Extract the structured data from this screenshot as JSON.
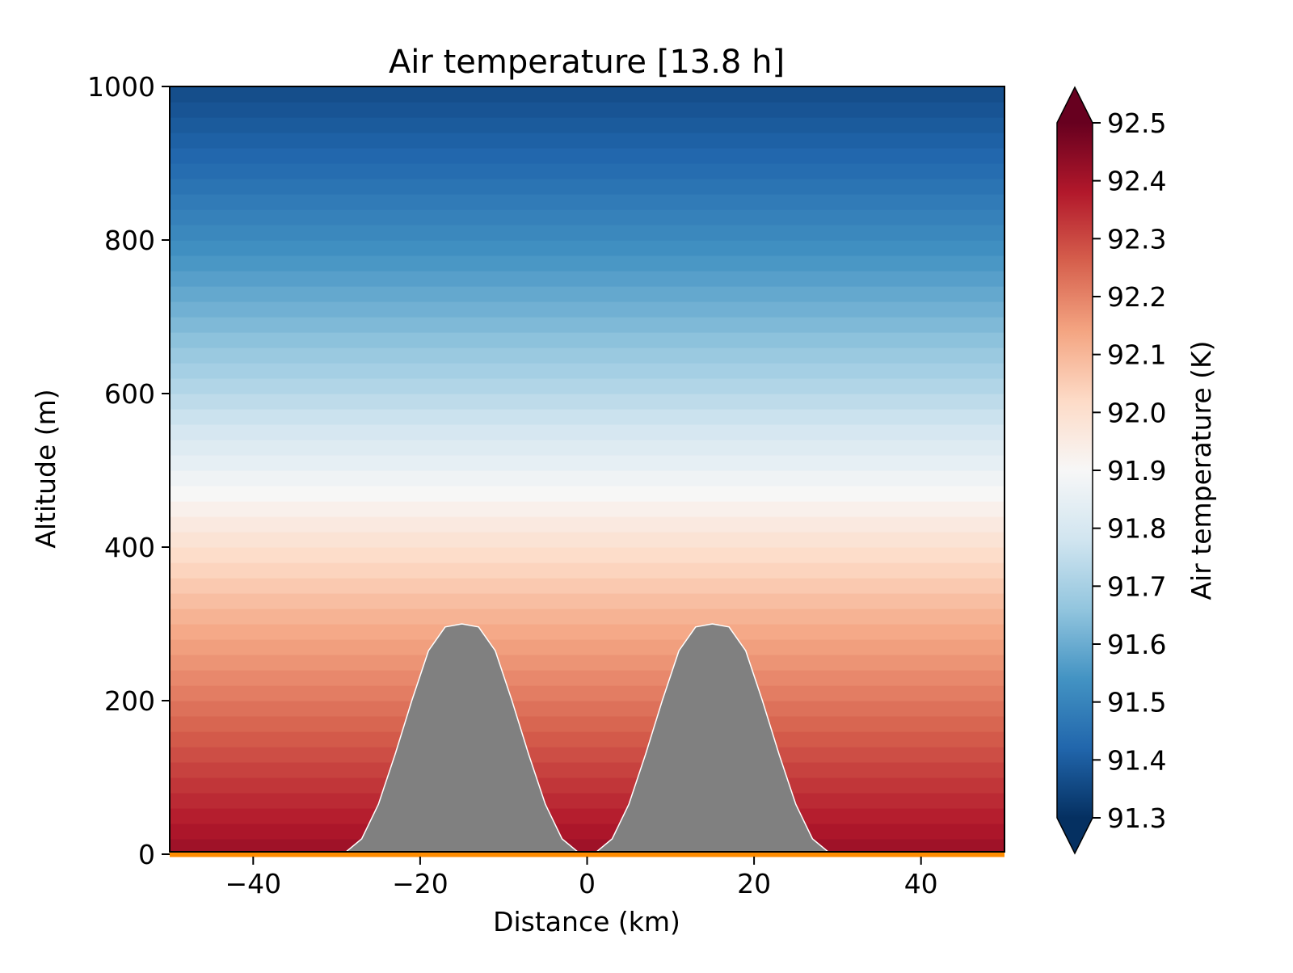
{
  "chart_data": {
    "type": "heatmap",
    "title": "Air temperature [13.8 h]",
    "xlabel": "Distance (km)",
    "ylabel": "Altitude (m)",
    "xlim": [
      -50,
      50
    ],
    "ylim": [
      0,
      1000
    ],
    "xticks": [
      -40,
      -20,
      0,
      20,
      40
    ],
    "xtick_labels": [
      "−40",
      "−20",
      "0",
      "20",
      "40"
    ],
    "yticks": [
      0,
      200,
      400,
      600,
      800,
      1000
    ],
    "ytick_labels": [
      "0",
      "200",
      "400",
      "600",
      "800",
      "1000"
    ],
    "grid": false,
    "colorbar": {
      "label": "Air temperature (K)",
      "range": [
        91.3,
        92.5
      ],
      "colormap": "RdBu_r",
      "extend": "both",
      "ticks": [
        91.3,
        91.4,
        91.5,
        91.6,
        91.7,
        91.8,
        91.9,
        92.0,
        92.1,
        92.2,
        92.3,
        92.4,
        92.5
      ],
      "tick_labels": [
        "91.3",
        "91.4",
        "91.5",
        "91.6",
        "91.7",
        "91.8",
        "91.9",
        "92.0",
        "92.1",
        "92.2",
        "92.3",
        "92.4",
        "92.5"
      ]
    },
    "temperature_profile": {
      "altitude_m": [
        0,
        100,
        200,
        300,
        400,
        450,
        500,
        600,
        700,
        800,
        900,
        1000
      ],
      "temperature_K": [
        92.42,
        92.32,
        92.22,
        92.12,
        92.0,
        91.93,
        91.86,
        91.73,
        91.62,
        91.52,
        91.43,
        91.36
      ]
    },
    "terrain": {
      "distance_km": [
        -50,
        -29,
        -27,
        -25,
        -23,
        -21,
        -19,
        -17,
        -15,
        -13,
        -11,
        -9,
        -7,
        -5,
        -3,
        -1,
        1,
        3,
        5,
        7,
        9,
        11,
        13,
        15,
        17,
        19,
        21,
        23,
        25,
        27,
        29,
        50
      ],
      "altitude_m": [
        0,
        2,
        20,
        65,
        130,
        200,
        265,
        296,
        300,
        296,
        265,
        200,
        130,
        65,
        20,
        2,
        2,
        20,
        65,
        130,
        200,
        265,
        296,
        300,
        296,
        265,
        200,
        130,
        65,
        20,
        2,
        0
      ],
      "color": "#808080"
    },
    "ground_line_color": "#ff8c00"
  }
}
